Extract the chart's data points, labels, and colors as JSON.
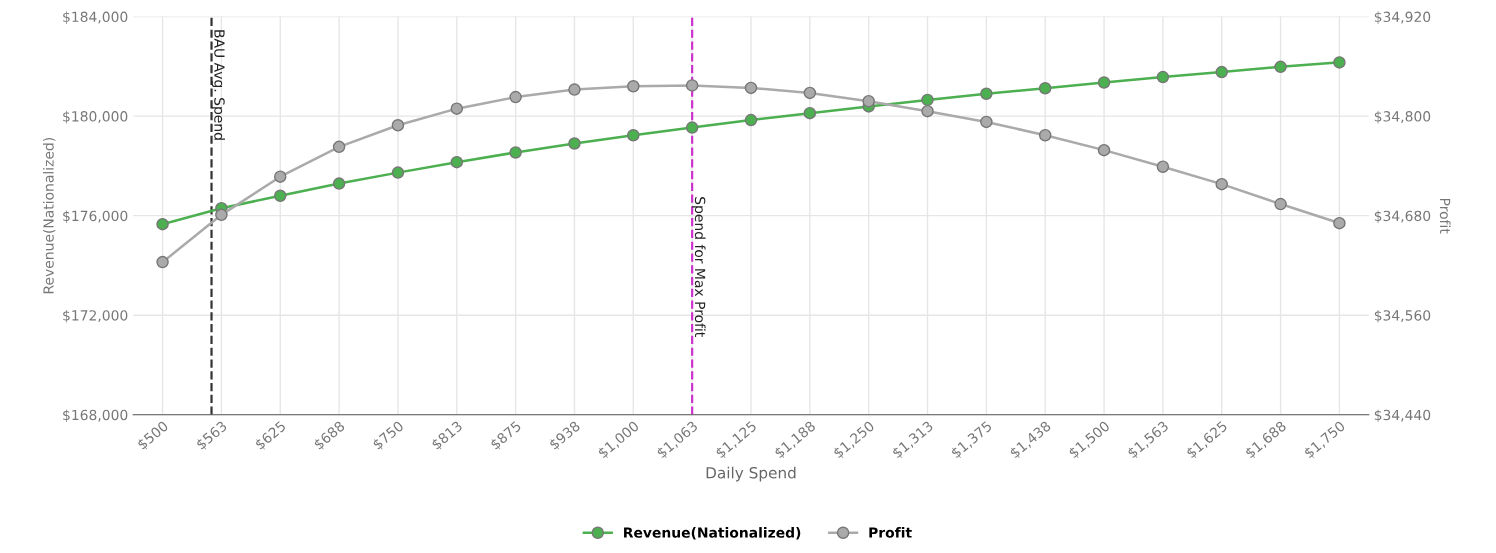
{
  "chart_data": {
    "type": "line",
    "xlabel": "Daily Spend",
    "ylabel": "Revenue(Nationalized)",
    "y2label": "Profit",
    "x": [
      500,
      562.5,
      625,
      687.5,
      750,
      812.5,
      875,
      937.5,
      1000,
      1062.5,
      1125,
      1187.5,
      1250,
      1312.5,
      1375,
      1437.5,
      1500,
      1562.5,
      1625,
      1687.5,
      1750
    ],
    "xlim": [
      468.75,
      1781.25
    ],
    "xticks": [
      {
        "value": 500,
        "label": "$500"
      },
      {
        "value": 562.5,
        "label": "$563"
      },
      {
        "value": 625,
        "label": "$625"
      },
      {
        "value": 687.5,
        "label": "$688"
      },
      {
        "value": 750,
        "label": "$750"
      },
      {
        "value": 812.5,
        "label": "$813"
      },
      {
        "value": 875,
        "label": "$875"
      },
      {
        "value": 937.5,
        "label": "$938"
      },
      {
        "value": 1000,
        "label": "$1,000"
      },
      {
        "value": 1062.5,
        "label": "$1,063"
      },
      {
        "value": 1125,
        "label": "$1,125"
      },
      {
        "value": 1187.5,
        "label": "$1,188"
      },
      {
        "value": 1250,
        "label": "$1,250"
      },
      {
        "value": 1312.5,
        "label": "$1,313"
      },
      {
        "value": 1375,
        "label": "$1,375"
      },
      {
        "value": 1437.5,
        "label": "$1,438"
      },
      {
        "value": 1500,
        "label": "$1,500"
      },
      {
        "value": 1562.5,
        "label": "$1,563"
      },
      {
        "value": 1625,
        "label": "$1,625"
      },
      {
        "value": 1687.5,
        "label": "$1,688"
      },
      {
        "value": 1750,
        "label": "$1,750"
      }
    ],
    "ylim": [
      168000,
      184000
    ],
    "yticks": [
      {
        "value": 168000,
        "label": "$168,000"
      },
      {
        "value": 172000,
        "label": "$172,000"
      },
      {
        "value": 176000,
        "label": "$176,000"
      },
      {
        "value": 180000,
        "label": "$180,000"
      },
      {
        "value": 184000,
        "label": "$184,000"
      }
    ],
    "y2lim": [
      34440,
      34920
    ],
    "y2ticks": [
      {
        "value": 34440,
        "label": "$34,440"
      },
      {
        "value": 34560,
        "label": "$34,560"
      },
      {
        "value": 34680,
        "label": "$34,680"
      },
      {
        "value": 34800,
        "label": "$34,800"
      },
      {
        "value": 34920,
        "label": "$34,920"
      }
    ],
    "series": [
      {
        "name": "Revenue(Nationalized)",
        "color": "#4caf50",
        "values": [
          175660,
          176300,
          176800,
          177290,
          177730,
          178150,
          178540,
          178900,
          179230,
          179540,
          179840,
          180120,
          180390,
          180650,
          180900,
          181120,
          181350,
          181570,
          181770,
          181980,
          182160
        ]
      },
      {
        "name": "Profit",
        "color": "#aaaaaa",
        "axis": "y2",
        "values": [
          34624,
          34681,
          34727,
          34763,
          34789,
          34809,
          34823,
          34832,
          34836,
          34837,
          34834,
          34828,
          34818,
          34806,
          34793,
          34777,
          34759,
          34739,
          34718,
          34694,
          34671
        ]
      }
    ],
    "ref_lines": [
      {
        "axis": "x",
        "value": 552,
        "label": "BAU Avg. Spend",
        "color": "#333333",
        "line_style": "dashed"
      },
      {
        "axis": "x",
        "value": 1062.5,
        "label": "Spend for Max Profit",
        "color": "#cc33cc",
        "line_style": "dashed"
      }
    ],
    "marker": "circle",
    "line_style": "solid",
    "grid": true,
    "legend": "bottom"
  }
}
